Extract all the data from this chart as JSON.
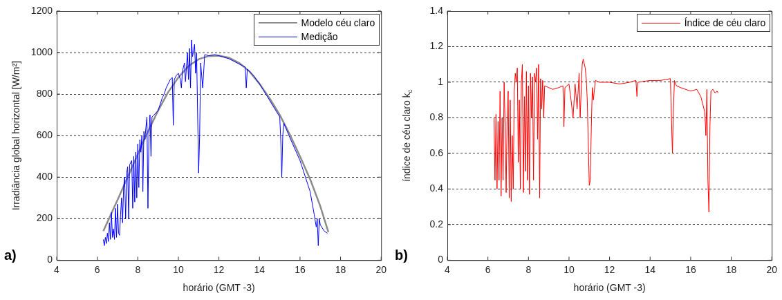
{
  "chart_data": [
    {
      "type": "line",
      "xlabel": "horário (GMT -3)",
      "ylabel": "Irradiância global horizontal [W/m²]",
      "xlim": [
        4,
        20
      ],
      "xticks": [
        4,
        6,
        8,
        10,
        12,
        14,
        16,
        18,
        20
      ],
      "ylim": [
        0,
        1200
      ],
      "yticks": [
        0,
        200,
        400,
        600,
        800,
        1000,
        1200
      ],
      "grid": "y",
      "legend": "top right",
      "annotations": [
        "a)"
      ],
      "series": [
        {
          "name": "Modelo céu claro",
          "color": "#8c8c8c",
          "x": [
            6.3,
            7,
            7.5,
            8,
            8.5,
            9,
            9.5,
            10,
            10.5,
            11,
            11.5,
            12,
            12.5,
            13,
            13.5,
            14,
            14.5,
            15,
            15.5,
            16,
            16.5,
            17,
            17.4
          ],
          "values": [
            140,
            290,
            400,
            510,
            620,
            720,
            810,
            880,
            935,
            968,
            983,
            985,
            975,
            950,
            910,
            850,
            780,
            700,
            605,
            500,
            390,
            260,
            135
          ]
        },
        {
          "name": "Medição",
          "color": "#0000ff",
          "x": [
            6.3,
            6.35,
            6.4,
            6.45,
            6.5,
            6.55,
            6.6,
            6.65,
            6.7,
            6.75,
            6.8,
            6.85,
            6.9,
            6.95,
            7.0,
            7.05,
            7.1,
            7.15,
            7.2,
            7.25,
            7.3,
            7.35,
            7.4,
            7.45,
            7.5,
            7.55,
            7.6,
            7.7,
            7.75,
            7.8,
            7.85,
            7.9,
            7.95,
            8.0,
            8.05,
            8.1,
            8.15,
            8.2,
            8.25,
            8.3,
            8.35,
            8.4,
            8.45,
            8.5,
            8.55,
            8.6,
            8.65,
            8.7,
            8.8,
            9.0,
            9.1,
            9.2,
            9.3,
            9.4,
            9.5,
            9.6,
            9.7,
            9.75,
            9.8,
            9.9,
            10.0,
            10.1,
            10.15,
            10.2,
            10.3,
            10.35,
            10.45,
            10.5,
            10.55,
            10.6,
            10.65,
            10.7,
            10.8,
            10.85,
            10.9,
            11.0,
            11.05,
            11.1,
            11.2,
            11.3,
            11.5,
            11.8,
            12.0,
            12.5,
            13.0,
            13.3,
            13.35,
            13.4,
            13.7,
            14.0,
            14.5,
            15.0,
            15.05,
            15.1,
            15.15,
            15.2,
            15.5,
            16.0,
            16.5,
            16.7,
            16.8,
            16.85,
            16.9,
            16.95,
            17.0,
            17.2,
            17.35
          ],
          "values": [
            100,
            70,
            110,
            80,
            130,
            90,
            180,
            100,
            230,
            110,
            150,
            100,
            250,
            110,
            270,
            130,
            120,
            220,
            300,
            180,
            350,
            400,
            200,
            420,
            450,
            200,
            460,
            480,
            250,
            500,
            280,
            520,
            300,
            560,
            350,
            580,
            520,
            600,
            330,
            620,
            580,
            640,
            690,
            250,
            600,
            700,
            500,
            690,
            700,
            720,
            750,
            780,
            800,
            830,
            850,
            870,
            880,
            650,
            870,
            890,
            900,
            870,
            830,
            910,
            950,
            860,
            1000,
            870,
            1020,
            830,
            1060,
            980,
            1040,
            900,
            1000,
            420,
            600,
            950,
            830,
            990,
            985,
            990,
            985,
            970,
            945,
            930,
            830,
            920,
            890,
            850,
            770,
            690,
            580,
            400,
            600,
            660,
            590,
            480,
            330,
            220,
            160,
            200,
            70,
            200,
            170,
            140,
            130
          ]
        }
      ]
    },
    {
      "type": "line",
      "xlabel": "horário (GMT -3)",
      "ylabel": "índice de céu claro k$_{c}$",
      "xlim": [
        4,
        20
      ],
      "xticks": [
        4,
        6,
        8,
        10,
        12,
        14,
        16,
        18,
        20
      ],
      "ylim": [
        0,
        1.4
      ],
      "yticks": [
        0,
        0.2,
        0.4,
        0.6,
        0.8,
        1,
        1.2,
        1.4
      ],
      "grid": "y",
      "legend": "top right",
      "annotations": [
        "b)"
      ],
      "series": [
        {
          "name": "Índice de céu claro",
          "color": "#ff0000",
          "x": [
            6.3,
            6.35,
            6.4,
            6.45,
            6.5,
            6.55,
            6.6,
            6.65,
            6.7,
            6.75,
            6.8,
            6.85,
            6.9,
            6.95,
            7.0,
            7.05,
            7.1,
            7.15,
            7.2,
            7.25,
            7.3,
            7.35,
            7.4,
            7.45,
            7.5,
            7.55,
            7.6,
            7.65,
            7.7,
            7.75,
            7.8,
            7.85,
            7.9,
            7.95,
            8.0,
            8.05,
            8.1,
            8.15,
            8.2,
            8.25,
            8.3,
            8.35,
            8.4,
            8.45,
            8.5,
            8.55,
            8.6,
            8.65,
            8.7,
            8.75,
            8.8,
            9.0,
            9.2,
            9.5,
            9.7,
            9.75,
            9.8,
            10.0,
            10.1,
            10.2,
            10.3,
            10.4,
            10.5,
            10.55,
            10.65,
            10.7,
            10.8,
            10.85,
            10.9,
            11.0,
            11.05,
            11.1,
            11.15,
            11.2,
            11.3,
            11.5,
            12.0,
            12.5,
            13.0,
            13.3,
            13.35,
            13.4,
            14.0,
            14.5,
            15.0,
            15.1,
            15.15,
            15.2,
            15.3,
            15.5,
            16.0,
            16.3,
            16.5,
            16.7,
            16.75,
            16.8,
            16.85,
            16.9,
            16.95,
            17.0,
            17.1,
            17.2,
            17.3,
            17.35
          ],
          "values": [
            0.8,
            0.45,
            0.82,
            0.4,
            0.78,
            0.45,
            0.95,
            0.36,
            0.8,
            0.45,
            1.0,
            0.75,
            0.38,
            0.8,
            0.95,
            0.35,
            0.9,
            0.33,
            0.7,
            0.4,
            0.95,
            1.05,
            1.0,
            1.08,
            0.55,
            0.9,
            0.4,
            1.0,
            1.1,
            0.38,
            0.92,
            0.5,
            1.06,
            0.45,
            0.98,
            0.37,
            1.05,
            0.8,
            1.03,
            0.45,
            1.05,
            1.0,
            1.08,
            0.68,
            1.1,
            0.35,
            1.02,
            0.85,
            1.01,
            0.8,
            0.98,
            0.97,
            0.96,
            0.97,
            0.98,
            0.75,
            0.97,
            0.99,
            0.9,
            0.8,
            0.99,
            0.85,
            1.05,
            0.8,
            1.1,
            1.13,
            1.08,
            1.02,
            0.9,
            0.42,
            0.45,
            0.75,
            0.97,
            0.9,
            1.01,
            1.0,
            1.0,
            0.99,
            1.0,
            1.01,
            0.92,
            1.0,
            1.01,
            1.01,
            1.02,
            0.6,
            0.85,
            1.01,
            0.98,
            0.97,
            0.95,
            0.96,
            0.92,
            0.83,
            0.7,
            0.96,
            0.45,
            0.27,
            0.75,
            0.95,
            0.96,
            0.94,
            0.95,
            0.94
          ]
        }
      ]
    }
  ]
}
